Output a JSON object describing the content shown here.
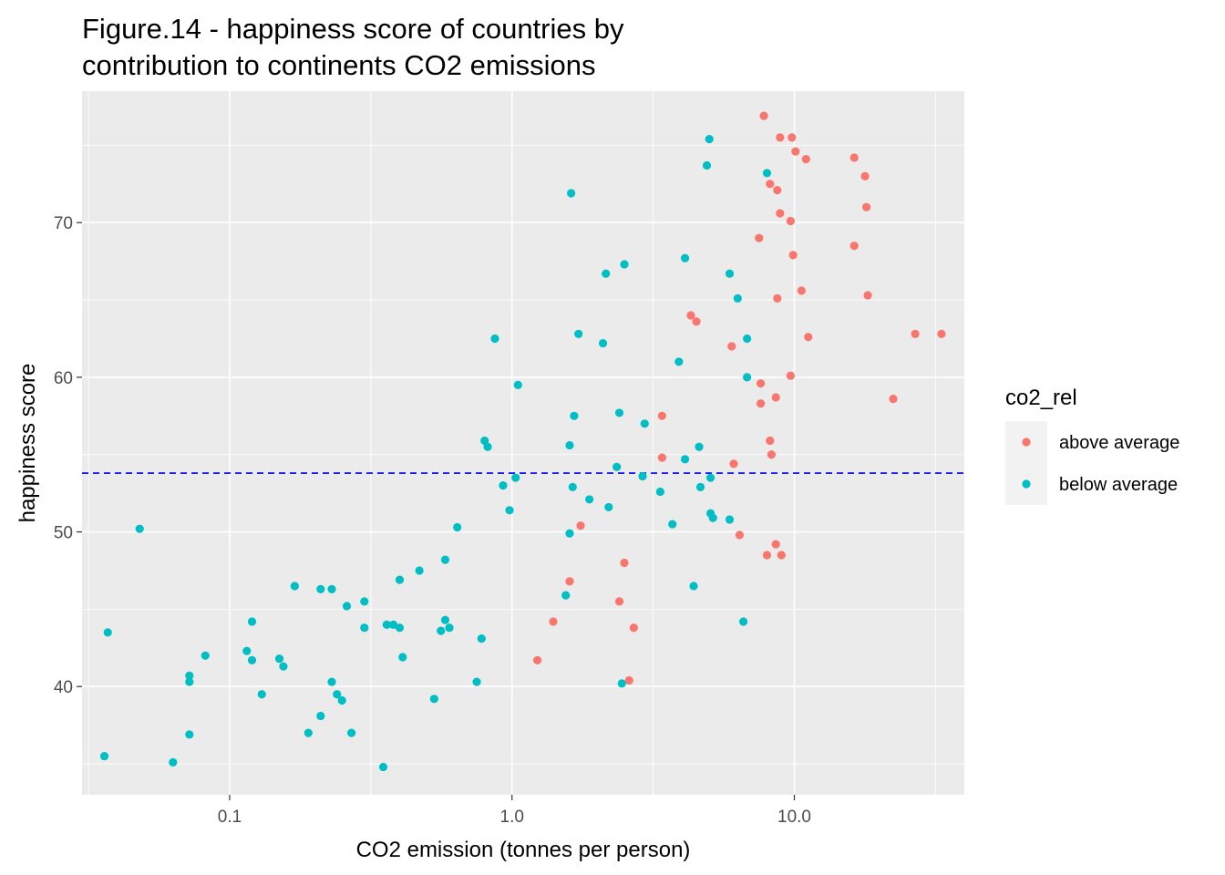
{
  "chart_data": {
    "type": "scatter",
    "title": "Figure.14 - happiness score of countries by\ncontribution to continents CO2 emissions",
    "xlabel": "CO2 emission (tonnes per person)",
    "ylabel": "happiness score",
    "x_scale": "log10",
    "xlim": [
      0.03,
      40
    ],
    "ylim": [
      33,
      78.5
    ],
    "x_ticks": [
      0.1,
      1.0,
      10.0
    ],
    "x_tick_labels": [
      "0.1",
      "1.0",
      "10.0"
    ],
    "y_ticks": [
      40,
      50,
      60,
      70
    ],
    "y_tick_labels": [
      "40",
      "50",
      "60",
      "70"
    ],
    "grid": true,
    "reference_line": {
      "y": 53.8,
      "style": "dashed",
      "color": "#0000ff"
    },
    "legend": {
      "title": "co2_rel",
      "position": "right",
      "entries": [
        {
          "label": "above average",
          "color": "#f8766d"
        },
        {
          "label": "below average",
          "color": "#00bfc4"
        }
      ]
    },
    "series": [
      {
        "name": "above average",
        "color": "#f8766d",
        "points": [
          [
            7.8,
            76.9
          ],
          [
            8.9,
            75.5
          ],
          [
            9.8,
            75.5
          ],
          [
            10.1,
            74.6
          ],
          [
            11.0,
            74.1
          ],
          [
            16.3,
            74.2
          ],
          [
            17.8,
            73.0
          ],
          [
            8.2,
            72.5
          ],
          [
            8.7,
            72.1
          ],
          [
            18.0,
            71.0
          ],
          [
            8.9,
            70.6
          ],
          [
            9.7,
            70.1
          ],
          [
            7.5,
            69.0
          ],
          [
            16.3,
            68.5
          ],
          [
            9.9,
            67.9
          ],
          [
            10.6,
            65.6
          ],
          [
            18.2,
            65.3
          ],
          [
            8.7,
            65.1
          ],
          [
            4.3,
            64.0
          ],
          [
            4.5,
            63.6
          ],
          [
            11.2,
            62.6
          ],
          [
            26.8,
            62.8
          ],
          [
            33.2,
            62.8
          ],
          [
            6.0,
            62.0
          ],
          [
            7.6,
            59.6
          ],
          [
            9.7,
            60.1
          ],
          [
            8.6,
            58.7
          ],
          [
            7.6,
            58.3
          ],
          [
            22.4,
            58.6
          ],
          [
            3.4,
            57.5
          ],
          [
            3.4,
            54.8
          ],
          [
            8.2,
            55.9
          ],
          [
            8.3,
            55.0
          ],
          [
            6.1,
            54.4
          ],
          [
            6.4,
            49.8
          ],
          [
            8.6,
            49.2
          ],
          [
            8.0,
            48.5
          ],
          [
            9.0,
            48.5
          ],
          [
            1.75,
            50.4
          ],
          [
            2.5,
            48.0
          ],
          [
            1.6,
            46.8
          ],
          [
            1.4,
            44.2
          ],
          [
            2.4,
            45.5
          ],
          [
            2.7,
            43.8
          ],
          [
            1.23,
            41.7
          ],
          [
            2.6,
            40.4
          ]
        ]
      },
      {
        "name": "below average",
        "color": "#00bfc4",
        "points": [
          [
            5.0,
            75.4
          ],
          [
            4.9,
            73.7
          ],
          [
            8.0,
            73.2
          ],
          [
            1.62,
            71.9
          ],
          [
            2.5,
            67.3
          ],
          [
            2.15,
            66.7
          ],
          [
            4.1,
            67.7
          ],
          [
            5.9,
            66.7
          ],
          [
            6.3,
            65.1
          ],
          [
            6.8,
            62.5
          ],
          [
            1.72,
            62.8
          ],
          [
            2.1,
            62.2
          ],
          [
            0.87,
            62.5
          ],
          [
            3.9,
            61.0
          ],
          [
            6.8,
            60.0
          ],
          [
            1.05,
            59.5
          ],
          [
            2.4,
            57.7
          ],
          [
            1.66,
            57.5
          ],
          [
            2.95,
            57.0
          ],
          [
            0.8,
            55.9
          ],
          [
            0.82,
            55.5
          ],
          [
            1.6,
            55.6
          ],
          [
            4.6,
            55.5
          ],
          [
            4.1,
            54.7
          ],
          [
            2.35,
            54.2
          ],
          [
            0.93,
            53.0
          ],
          [
            1.03,
            53.5
          ],
          [
            1.64,
            52.9
          ],
          [
            1.88,
            52.1
          ],
          [
            2.2,
            51.6
          ],
          [
            2.9,
            53.6
          ],
          [
            3.35,
            52.6
          ],
          [
            4.65,
            52.9
          ],
          [
            5.05,
            53.5
          ],
          [
            0.98,
            51.4
          ],
          [
            5.05,
            51.2
          ],
          [
            5.15,
            50.9
          ],
          [
            5.9,
            50.8
          ],
          [
            3.7,
            50.5
          ],
          [
            1.6,
            49.9
          ],
          [
            0.64,
            50.3
          ],
          [
            0.048,
            50.2
          ],
          [
            0.58,
            48.2
          ],
          [
            0.47,
            47.5
          ],
          [
            0.4,
            46.9
          ],
          [
            0.17,
            46.5
          ],
          [
            0.21,
            46.3
          ],
          [
            0.23,
            46.3
          ],
          [
            0.3,
            45.5
          ],
          [
            0.26,
            45.2
          ],
          [
            1.55,
            45.9
          ],
          [
            4.4,
            46.5
          ],
          [
            0.12,
            44.2
          ],
          [
            0.037,
            43.5
          ],
          [
            0.36,
            44.0
          ],
          [
            0.38,
            44.0
          ],
          [
            0.4,
            43.8
          ],
          [
            0.3,
            43.8
          ],
          [
            0.58,
            44.3
          ],
          [
            0.56,
            43.6
          ],
          [
            0.6,
            43.8
          ],
          [
            0.78,
            43.1
          ],
          [
            6.6,
            44.2
          ],
          [
            0.082,
            42.0
          ],
          [
            0.115,
            42.3
          ],
          [
            0.12,
            41.7
          ],
          [
            0.15,
            41.8
          ],
          [
            0.155,
            41.3
          ],
          [
            0.41,
            41.9
          ],
          [
            0.072,
            40.7
          ],
          [
            0.072,
            40.3
          ],
          [
            0.23,
            40.3
          ],
          [
            0.75,
            40.3
          ],
          [
            2.45,
            40.2
          ],
          [
            0.13,
            39.5
          ],
          [
            0.24,
            39.5
          ],
          [
            0.25,
            39.1
          ],
          [
            0.53,
            39.2
          ],
          [
            0.21,
            38.1
          ],
          [
            0.072,
            36.9
          ],
          [
            0.19,
            37.0
          ],
          [
            0.27,
            37.0
          ],
          [
            0.036,
            35.5
          ],
          [
            0.063,
            35.1
          ],
          [
            0.35,
            34.8
          ]
        ]
      }
    ]
  }
}
